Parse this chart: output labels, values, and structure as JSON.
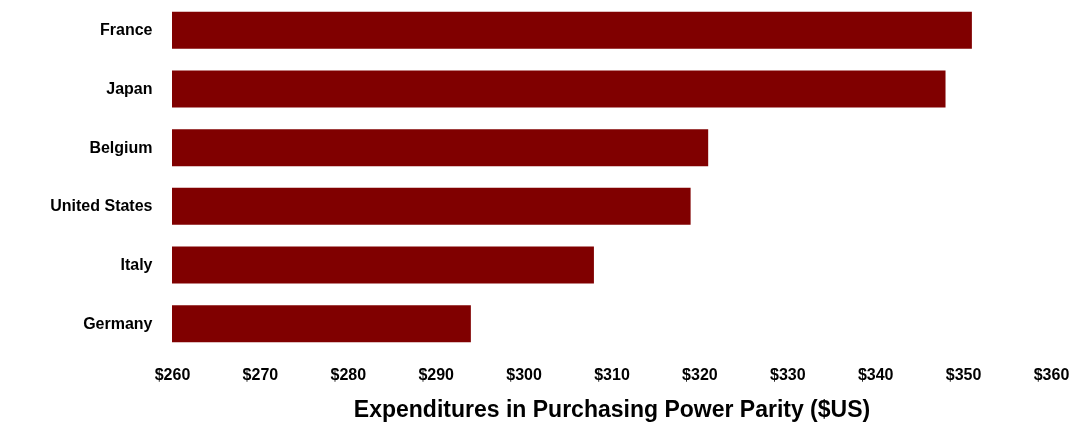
{
  "chart_data": {
    "type": "bar",
    "orientation": "horizontal",
    "xlabel": "Expenditures in Purchasing Power Parity ($US)",
    "categories": [
      "France",
      "Japan",
      "Belgium",
      "United States",
      "Italy",
      "Germany"
    ],
    "values": [
      351,
      348,
      321,
      319,
      308,
      294
    ],
    "color": "#800000",
    "xlim": [
      260,
      360
    ],
    "xticks": [
      {
        "value": 260,
        "label": "$260"
      },
      {
        "value": 270,
        "label": "$270"
      },
      {
        "value": 280,
        "label": "$280"
      },
      {
        "value": 290,
        "label": "$290"
      },
      {
        "value": 300,
        "label": "$300"
      },
      {
        "value": 310,
        "label": "$310"
      },
      {
        "value": 320,
        "label": "$320"
      },
      {
        "value": 330,
        "label": "$330"
      },
      {
        "value": 340,
        "label": "$340"
      },
      {
        "value": 350,
        "label": "$350"
      },
      {
        "value": 360,
        "label": "$360"
      }
    ],
    "grid": false
  }
}
